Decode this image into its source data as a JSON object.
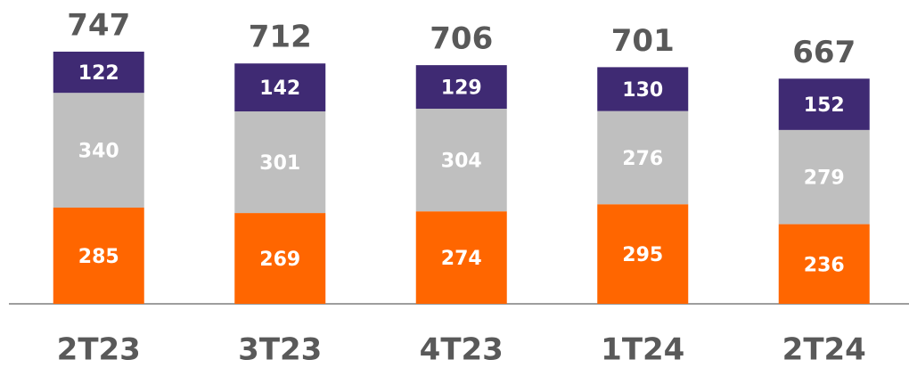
{
  "chart_data": {
    "type": "stacked_bar",
    "categories": [
      "2T23",
      "3T23",
      "4T23",
      "1T24",
      "2T24"
    ],
    "series": [
      {
        "color": "#ff6600",
        "values": [
          285,
          269,
          274,
          295,
          236
        ]
      },
      {
        "color": "#bfbfbf",
        "values": [
          340,
          301,
          304,
          276,
          279
        ]
      },
      {
        "color": "#3f2a73",
        "values": [
          122,
          142,
          129,
          130,
          152
        ]
      }
    ],
    "totals": [
      747,
      712,
      706,
      701,
      667
    ],
    "ylim": [
      0,
      900
    ]
  }
}
